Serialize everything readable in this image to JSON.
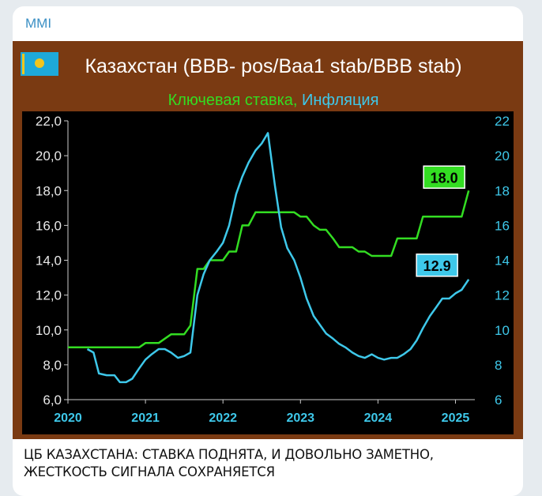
{
  "post": {
    "channel": "MMI",
    "caption_line1": "ЦБ КАЗАХСТАНА: СТАВКА ПОДНЯТА, И ДОВОЛЬНО ЗАМЕТНО,",
    "caption_line2": "ЖЕСТКОСТЬ СИГНАЛА СОХРАНЯЕТСЯ"
  },
  "colors": {
    "frame": "#7a3a12",
    "plot_bg": "#000000",
    "rate": "#33dd22",
    "inflation": "#3ec8ea",
    "left_tick": "#e8e8e8",
    "year_tick": "#3ec8ea",
    "subtitle_rate": "#33dd22",
    "subtitle_inflation": "#3ec8ea"
  },
  "chart_data": {
    "type": "line",
    "title": "Казахстан (BBB- pos/Baa1 stab/BBB stab)",
    "subtitle_rate": "Ключевая ставка",
    "subtitle_sep": ", ",
    "subtitle_inflation": "Инфляция",
    "flag": "kazakhstan-flag",
    "x_ticks": [
      "2020",
      "2021",
      "2022",
      "2023",
      "2024",
      "2025"
    ],
    "x_range": [
      2020.0,
      2025.25
    ],
    "y_left": {
      "range": [
        6,
        22
      ],
      "ticks": [
        "6,0",
        "8,0",
        "10,0",
        "12,0",
        "14,0",
        "16,0",
        "18,0",
        "20,0",
        "22,0"
      ]
    },
    "y_right": {
      "range": [
        6,
        22
      ],
      "ticks": [
        "6",
        "8",
        "10",
        "12",
        "14",
        "16",
        "18",
        "20",
        "22"
      ]
    },
    "grid": false,
    "series": [
      {
        "name": "Ключевая ставка",
        "axis": "left",
        "end_label": "18.0",
        "points": [
          [
            2020.0,
            9.0
          ],
          [
            2020.3,
            9.0
          ],
          [
            2020.92,
            9.0
          ],
          [
            2021.0,
            9.25
          ],
          [
            2021.17,
            9.25
          ],
          [
            2021.25,
            9.5
          ],
          [
            2021.33,
            9.75
          ],
          [
            2021.5,
            9.75
          ],
          [
            2021.58,
            10.25
          ],
          [
            2021.67,
            13.5
          ],
          [
            2021.75,
            13.5
          ],
          [
            2021.83,
            14.0
          ],
          [
            2021.92,
            14.0
          ],
          [
            2022.0,
            14.0
          ],
          [
            2022.08,
            14.5
          ],
          [
            2022.17,
            14.5
          ],
          [
            2022.25,
            16.0
          ],
          [
            2022.33,
            16.0
          ],
          [
            2022.42,
            16.75
          ],
          [
            2022.5,
            16.75
          ],
          [
            2022.92,
            16.75
          ],
          [
            2023.0,
            16.5
          ],
          [
            2023.08,
            16.5
          ],
          [
            2023.17,
            16.0
          ],
          [
            2023.25,
            15.75
          ],
          [
            2023.33,
            15.75
          ],
          [
            2023.42,
            15.25
          ],
          [
            2023.5,
            14.75
          ],
          [
            2023.58,
            14.75
          ],
          [
            2023.67,
            14.75
          ],
          [
            2023.75,
            14.5
          ],
          [
            2023.83,
            14.5
          ],
          [
            2023.92,
            14.25
          ],
          [
            2024.0,
            14.25
          ],
          [
            2024.17,
            14.25
          ],
          [
            2024.25,
            15.25
          ],
          [
            2024.33,
            15.25
          ],
          [
            2024.5,
            15.25
          ],
          [
            2024.58,
            16.5
          ],
          [
            2024.67,
            16.5
          ],
          [
            2025.0,
            16.5
          ],
          [
            2025.08,
            16.5
          ],
          [
            2025.17,
            18.0
          ]
        ]
      },
      {
        "name": "Инфляция",
        "axis": "right",
        "end_label": "12.9",
        "points": [
          [
            2020.25,
            8.9
          ],
          [
            2020.33,
            8.7
          ],
          [
            2020.4,
            7.5
          ],
          [
            2020.5,
            7.4
          ],
          [
            2020.6,
            7.4
          ],
          [
            2020.67,
            7.0
          ],
          [
            2020.75,
            7.0
          ],
          [
            2020.83,
            7.2
          ],
          [
            2020.92,
            7.8
          ],
          [
            2021.0,
            8.3
          ],
          [
            2021.08,
            8.6
          ],
          [
            2021.17,
            8.9
          ],
          [
            2021.25,
            8.9
          ],
          [
            2021.33,
            8.7
          ],
          [
            2021.42,
            8.4
          ],
          [
            2021.5,
            8.5
          ],
          [
            2021.58,
            8.7
          ],
          [
            2021.67,
            12.0
          ],
          [
            2021.75,
            13.2
          ],
          [
            2021.83,
            14.0
          ],
          [
            2021.92,
            14.5
          ],
          [
            2022.0,
            15.0
          ],
          [
            2022.08,
            16.0
          ],
          [
            2022.17,
            17.8
          ],
          [
            2022.25,
            18.8
          ],
          [
            2022.33,
            19.6
          ],
          [
            2022.42,
            20.3
          ],
          [
            2022.5,
            20.7
          ],
          [
            2022.58,
            21.3
          ],
          [
            2022.67,
            18.3
          ],
          [
            2022.75,
            15.9
          ],
          [
            2022.83,
            14.7
          ],
          [
            2022.92,
            14.0
          ],
          [
            2023.0,
            13.0
          ],
          [
            2023.08,
            11.8
          ],
          [
            2023.17,
            10.8
          ],
          [
            2023.25,
            10.3
          ],
          [
            2023.33,
            9.8
          ],
          [
            2023.42,
            9.5
          ],
          [
            2023.5,
            9.2
          ],
          [
            2023.58,
            9.0
          ],
          [
            2023.67,
            8.7
          ],
          [
            2023.75,
            8.5
          ],
          [
            2023.83,
            8.4
          ],
          [
            2023.92,
            8.6
          ],
          [
            2024.0,
            8.4
          ],
          [
            2024.08,
            8.3
          ],
          [
            2024.17,
            8.4
          ],
          [
            2024.25,
            8.4
          ],
          [
            2024.33,
            8.6
          ],
          [
            2024.42,
            8.9
          ],
          [
            2024.5,
            9.4
          ],
          [
            2024.58,
            10.1
          ],
          [
            2024.67,
            10.8
          ],
          [
            2024.75,
            11.3
          ],
          [
            2024.83,
            11.8
          ],
          [
            2024.92,
            11.8
          ],
          [
            2025.0,
            12.1
          ],
          [
            2025.08,
            12.3
          ],
          [
            2025.17,
            12.9
          ]
        ]
      }
    ]
  }
}
